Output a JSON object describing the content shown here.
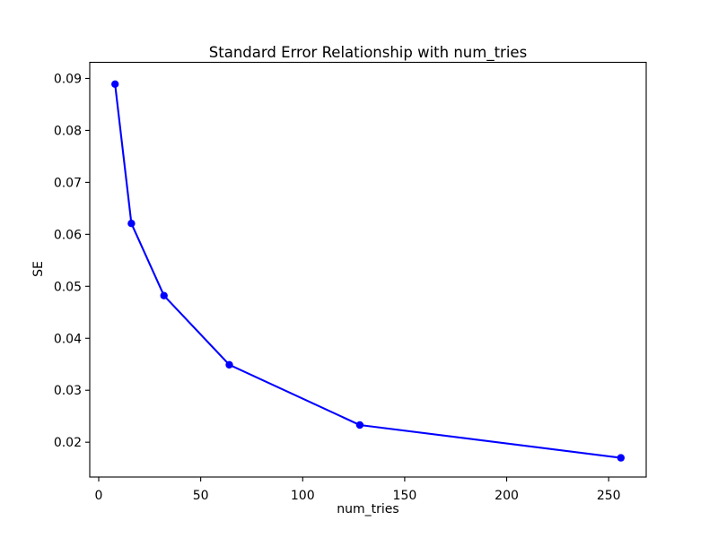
{
  "chart_data": {
    "type": "line",
    "title": "Standard Error Relationship with num_tries",
    "xlabel": "num_tries",
    "ylabel": "SE",
    "x": [
      8,
      16,
      32,
      64,
      128,
      256
    ],
    "y": [
      0.0889,
      0.0621,
      0.0482,
      0.0349,
      0.0233,
      0.017
    ],
    "xlim": [
      -4.4,
      268.4
    ],
    "ylim": [
      0.0133,
      0.0931
    ],
    "xticks": [
      0,
      50,
      100,
      150,
      200,
      250
    ],
    "yticks": [
      0.02,
      0.03,
      0.04,
      0.05,
      0.06,
      0.07,
      0.08,
      0.09
    ],
    "ytick_decimals": 2,
    "line_color": "#0000ff",
    "marker": "o",
    "marker_color": "#0000ff",
    "axis_color": "#000000",
    "background_color": "#ffffff",
    "grid": false,
    "legend": null
  }
}
